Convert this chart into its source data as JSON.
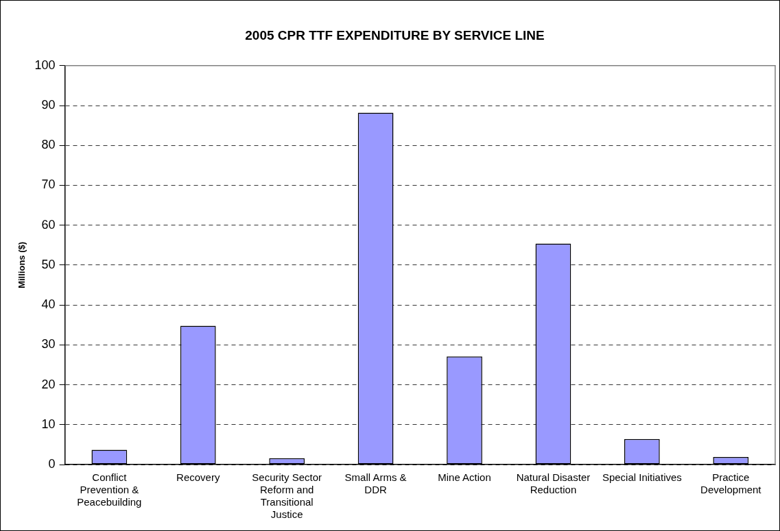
{
  "chart_data": {
    "type": "bar",
    "title": "2005 CPR TTF EXPENDITURE BY SERVICE LINE",
    "ylabel": "Millions ($)",
    "categories": [
      "Conflict Prevention & Peacebuilding",
      "Recovery",
      "Security Sector Reform and Transitional Justice",
      "Small Arms & DDR",
      "Mine Action",
      "Natural Disaster Reduction",
      "Special Initiatives",
      "Practice Development"
    ],
    "values": [
      3.7,
      34.8,
      1.6,
      88.2,
      27.1,
      55.4,
      6.4,
      1.9
    ],
    "color": "#9999ff",
    "ylim": [
      0,
      100
    ],
    "yticks": [
      0,
      10,
      20,
      30,
      40,
      50,
      60,
      70,
      80,
      90,
      100
    ],
    "grid": "y",
    "line_style": "dashed",
    "legend": false
  }
}
